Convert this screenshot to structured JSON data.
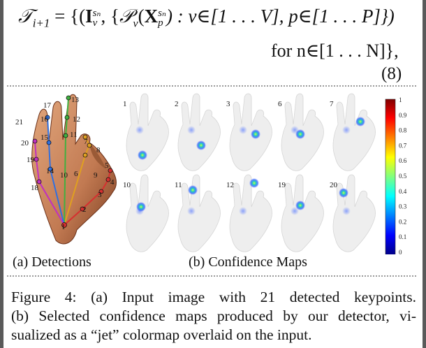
{
  "equation": {
    "line1": "𝒯ᵢ₊₁ = {(𝐈ᵥ^{sₙ}, {𝒫ᵥ(𝐗ₚ^{sₙ}) : v∈[1 . . . V], p∈[1 . . . P]})",
    "line1_parts": {
      "lhs": "𝒯",
      "lhs_sub": "i+1",
      "eq": " = {(",
      "I": "I",
      "I_sup": "sₙ",
      "I_sub": "v",
      "mid1": ", {",
      "P": "𝒫",
      "P_sub": "v",
      "paren": "(",
      "X": "X",
      "X_sup": "sₙ",
      "X_sub": "p",
      "mid2": ") : v∈[1 . . . V], p∈[1 . . . P]})"
    },
    "line2": "for n∈[1 . . . N]},",
    "number": "(8)"
  },
  "figure": {
    "subcaption_a": "(a) Detections",
    "subcaption_b": "(b) Confidence Maps",
    "keypoint_labels": [
      "1",
      "2",
      "3",
      "4",
      "5",
      "6",
      "7",
      "8",
      "9",
      "10",
      "11",
      "12",
      "13",
      "14",
      "15",
      "16",
      "17",
      "18",
      "19",
      "20",
      "21"
    ],
    "map_labels_top": [
      "1",
      "2",
      "3",
      "6",
      "7"
    ],
    "map_labels_bottom": [
      "10",
      "11",
      "12",
      "19",
      "20"
    ],
    "colorbar_ticks": [
      "1",
      "0.9",
      "0.8",
      "0.7",
      "0.6",
      "0.5",
      "0.4",
      "0.3",
      "0.2",
      "0.1",
      "0"
    ]
  },
  "caption": {
    "line1": "Figure 4: (a) Input image with 21 detected keypoints.",
    "line2": "(b) Selected confidence maps produced by our detector, vi-",
    "line3": "sualized as a “jet” colormap overlaid on the input."
  },
  "colors": {
    "skin": "#c9875f",
    "skin_dark": "#8a4a2c",
    "map_hand": "#eeeeee",
    "thumb": "#d63030",
    "index": "#e0a020",
    "middle": "#40b040",
    "ring": "#3070e0",
    "pinky": "#c030c0"
  }
}
